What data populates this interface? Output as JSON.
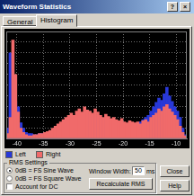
{
  "window": {
    "title": "Waveform Statistics",
    "title_buttons": [
      "?",
      "×"
    ]
  },
  "tabs": [
    {
      "label": "General",
      "active": false
    },
    {
      "label": "Histogram",
      "active": true
    }
  ],
  "chart_data": {
    "type": "histogram",
    "bins": [
      -42,
      -41.5,
      -41,
      -40.5,
      -40,
      -39.5,
      -39,
      -38.5,
      -38,
      -37.5,
      -37,
      -36.5,
      -36,
      -35.5,
      -35,
      -34.5,
      -34,
      -33.5,
      -33,
      -32.5,
      -32,
      -31.5,
      -31,
      -30.5,
      -30,
      -29.5,
      -29,
      -28.5,
      -28,
      -27.5,
      -27,
      -26.5,
      -26,
      -25.5,
      -25,
      -24.5,
      -24,
      -23.5,
      -23,
      -22.5,
      -22,
      -21.5,
      -21,
      -20.5,
      -20,
      -19.5,
      -19,
      -18.5,
      -18,
      -17.5,
      -17,
      -16.5,
      -16,
      -15.5,
      -15,
      -14.5,
      -14,
      -13.5,
      -13,
      -12.5,
      -12,
      -11.5,
      -11,
      -10.5,
      -10,
      -9.5,
      -9,
      -8.5,
      -8
    ],
    "series": [
      {
        "name": "Left",
        "color": "#2838d8",
        "values": [
          10,
          80,
          60,
          35,
          30,
          15,
          10,
          6,
          5,
          5,
          4,
          4,
          5,
          5,
          6,
          6,
          7,
          8,
          9,
          10,
          12,
          13,
          15,
          16,
          18,
          20,
          19,
          22,
          21,
          24,
          23,
          22,
          20,
          22,
          21,
          19,
          18,
          20,
          18,
          17,
          17,
          16,
          15,
          16,
          14,
          14,
          15,
          14,
          14,
          15,
          16,
          18,
          20,
          22,
          26,
          30,
          34,
          38,
          36,
          42,
          48,
          40,
          35,
          30,
          26,
          20,
          10,
          4
        ]
      },
      {
        "name": "Right",
        "color": "#f06a6a",
        "values": [
          5,
          20,
          92,
          60,
          25,
          10,
          6,
          4,
          3,
          3,
          4,
          4,
          5,
          5,
          6,
          7,
          8,
          10,
          12,
          14,
          16,
          18,
          20,
          22,
          24,
          22,
          26,
          28,
          25,
          30,
          27,
          26,
          24,
          28,
          25,
          22,
          20,
          23,
          21,
          19,
          20,
          18,
          17,
          19,
          16,
          15,
          17,
          16,
          15,
          16,
          14,
          17,
          18,
          16,
          20,
          22,
          24,
          28,
          26,
          30,
          32,
          28,
          25,
          22,
          18,
          12,
          6,
          3
        ]
      }
    ],
    "xlim": [
      -42,
      -8
    ],
    "xticks": [
      -40,
      -35,
      -30,
      -25,
      -20,
      -15,
      -10
    ],
    "ylim": [
      0,
      100
    ],
    "yticks": [
      0,
      10,
      20,
      30,
      40,
      50,
      60,
      70,
      80,
      90,
      100
    ],
    "grid": true,
    "tick_labels": "x"
  },
  "rms_settings": {
    "title": "RMS Settings",
    "options": [
      {
        "label": "0dB = FS Sine Wave",
        "selected": true
      },
      {
        "label": "0dB = FS Square Wave",
        "selected": false
      }
    ],
    "account_for_dc": {
      "label": "Account for DC",
      "checked": false
    },
    "window_width": {
      "label": "Window Width:",
      "value": 50,
      "unit": "ms"
    },
    "recalculate_button": "Recalculate RMS"
  },
  "buttons": [
    "Close",
    "Help"
  ]
}
